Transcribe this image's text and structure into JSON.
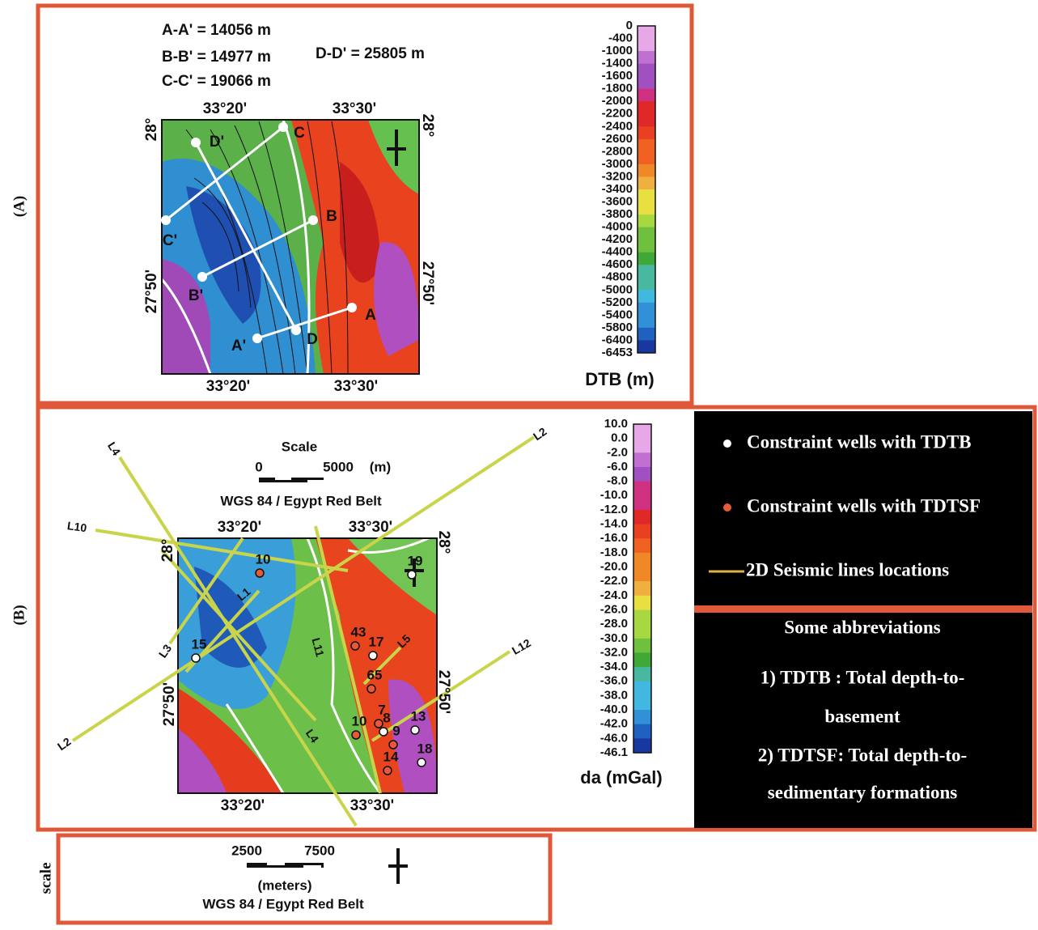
{
  "panel_a": {
    "label": "(A)",
    "distances": [
      "A-A' = 14056 m",
      "B-B' = 14977 m",
      "C-C' = 19066 m",
      "D-D' = 25805 m"
    ],
    "map": {
      "top_lon": [
        "33°20'",
        "33°30'"
      ],
      "bottom_lon": [
        "33°20'",
        "33°30'"
      ],
      "left_lat": [
        "28°",
        "27°50'"
      ],
      "right_lat": [
        "28°",
        "27°50'"
      ],
      "points": [
        "A",
        "A'",
        "B",
        "B'",
        "C",
        "C'",
        "D",
        "D'"
      ]
    },
    "colorbar": {
      "labels": [
        "0",
        "-400",
        "-1000",
        "-1400",
        "-1600",
        "-1800",
        "-2000",
        "-2200",
        "-2400",
        "-2600",
        "-2800",
        "-3000",
        "-3200",
        "-3400",
        "-3600",
        "-3800",
        "-4000",
        "-4200",
        "-4400",
        "-4600",
        "-4800",
        "-5000",
        "-5200",
        "-5400",
        "-5800",
        "-6400",
        "-6453"
      ],
      "title": "DTB (m)"
    }
  },
  "panel_b": {
    "label": "(B)",
    "scale": {
      "title": "Scale",
      "left": "0",
      "right": "5000",
      "unit": "(m)",
      "datum": "WGS 84 / Egypt Red Belt"
    },
    "map": {
      "top_lon": [
        "33°20'",
        "33°30'"
      ],
      "bottom_lon": [
        "33°20'",
        "33°30'"
      ],
      "left_lat": [
        "28°",
        "27°50'"
      ],
      "right_lat": [
        "28°",
        "27°50'"
      ],
      "seismic_lines": [
        "L2",
        "L4",
        "L10",
        "L1",
        "L3",
        "L11",
        "L5",
        "L12",
        "L2",
        "L4"
      ],
      "wells": [
        "10",
        "19",
        "43",
        "17",
        "65",
        "7",
        "8",
        "10",
        "9",
        "13",
        "18",
        "14",
        "15"
      ]
    },
    "colorbar": {
      "labels": [
        "10.0",
        "0.0",
        "-2.0",
        "-6.0",
        "-8.0",
        "-10.0",
        "-12.0",
        "-14.0",
        "-16.0",
        "-18.0",
        "-20.0",
        "-22.0",
        "-24.0",
        "-26.0",
        "-28.0",
        "-30.0",
        "-32.0",
        "-34.0",
        "-36.0",
        "-38.0",
        "-40.0",
        "-42.0",
        "-46.0",
        "-46.1"
      ],
      "title": "da (mGal)"
    }
  },
  "legend": [
    "Constraint wells with TDTB",
    "Constraint wells with TDTSF",
    "2D Seismic lines locations"
  ],
  "abbreviations": {
    "title": "Some abbreviations",
    "lines": [
      "1) TDTB : Total depth-to-",
      "basement",
      "2) TDTSF: Total depth-to-",
      "sedimentary formations"
    ]
  },
  "scale_panel": {
    "label": "scale",
    "left": "2500",
    "right": "7500",
    "unit": "(meters)",
    "datum": "WGS 84 / Egypt Red Belt"
  }
}
